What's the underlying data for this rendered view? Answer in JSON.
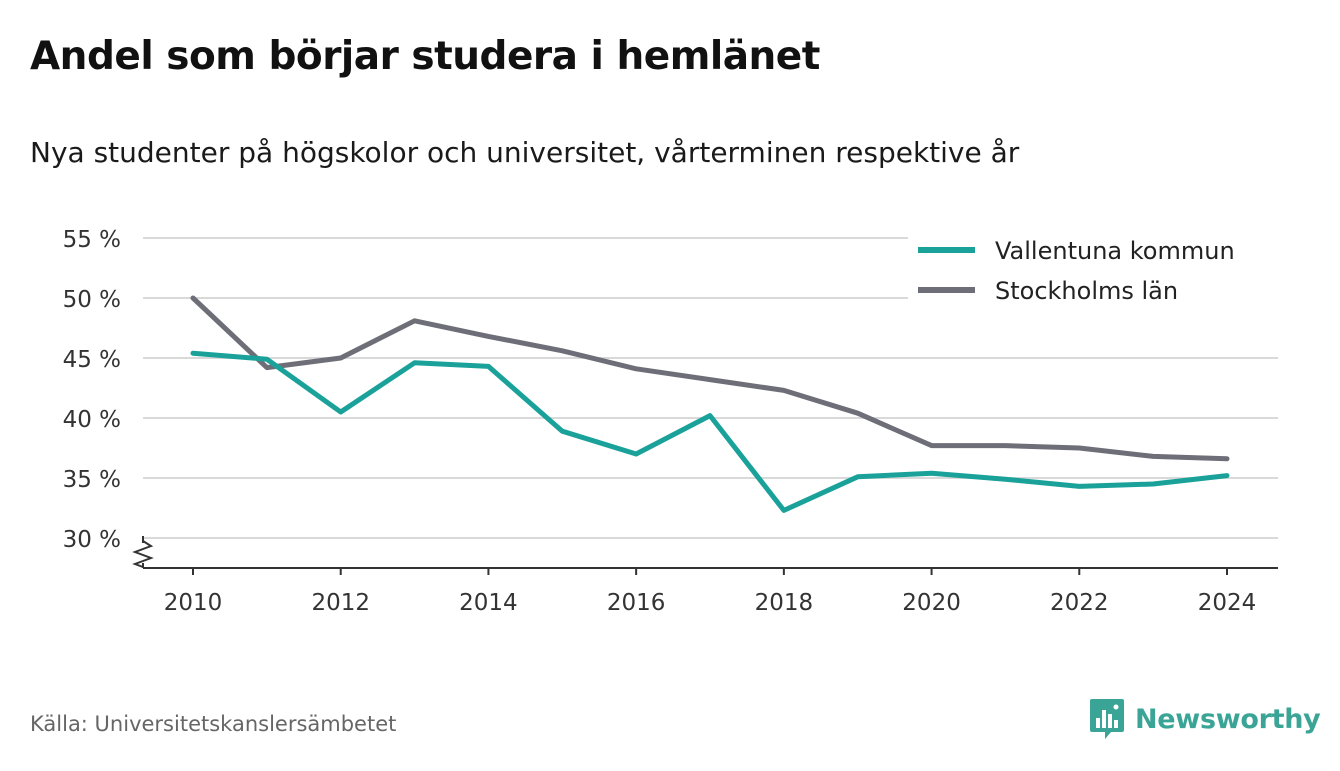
{
  "title": "Andel som börjar studera i hemlänet",
  "subtitle": "Nya studenter på högskolor och universitet, vårterminen respektive år",
  "source": "Källa: Universitetskanslersämbetet",
  "brand": {
    "name": "Newsworthy",
    "color": "#3aa596",
    "icon": "bar-chart-speech-bubble-icon"
  },
  "chart_data": {
    "type": "line",
    "x": [
      2010,
      2011,
      2012,
      2013,
      2014,
      2015,
      2016,
      2017,
      2018,
      2019,
      2020,
      2021,
      2022,
      2023,
      2024
    ],
    "series": [
      {
        "name": "Vallentuna kommun",
        "color": "#1aa29a",
        "values": [
          45.4,
          44.9,
          40.5,
          44.6,
          44.3,
          38.9,
          37.0,
          40.2,
          32.3,
          35.1,
          35.4,
          34.9,
          34.3,
          34.5,
          35.2
        ]
      },
      {
        "name": "Stockholms län",
        "color": "#6e6e78",
        "values": [
          50.0,
          44.2,
          45.0,
          48.1,
          46.8,
          45.6,
          44.1,
          43.2,
          42.3,
          40.4,
          37.7,
          37.7,
          37.5,
          36.8,
          36.6
        ]
      }
    ],
    "xlim": [
      2010,
      2024
    ],
    "ylim": [
      30,
      55
    ],
    "x_ticks": [
      "2010",
      "2012",
      "2014",
      "2016",
      "2018",
      "2020",
      "2022",
      "2024"
    ],
    "y_ticks": [
      "30 %",
      "35 %",
      "40 %",
      "45 %",
      "50 %",
      "55 %"
    ],
    "y_axis_break": true,
    "grid": true,
    "legend": "top-right"
  }
}
